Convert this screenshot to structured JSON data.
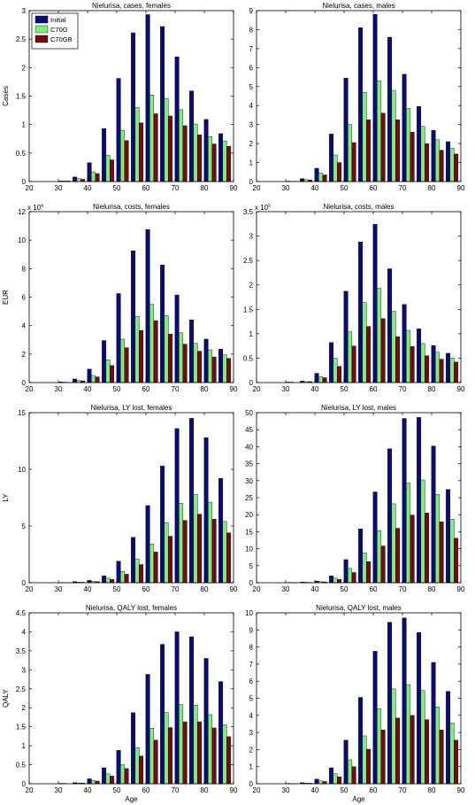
{
  "colors": {
    "Initial": "#0a0a7a",
    "C70G": "#7cf07c",
    "C70GB": "#7a0a0a",
    "axis": "#000000"
  },
  "legend": {
    "labels": [
      "Initial",
      "C70G",
      "C70GB"
    ],
    "placement": "top-left",
    "panel_index": 0
  },
  "chart_data": [
    {
      "type": "bar",
      "title": "Nielurisa, cases, females",
      "xlabel": "",
      "ylabel": "Cases",
      "exponent": "",
      "xlim": [
        20,
        90
      ],
      "ylim": [
        0,
        3
      ],
      "xticks": [
        20,
        30,
        40,
        50,
        60,
        70,
        80,
        90
      ],
      "yticks": [
        0,
        0.5,
        1,
        1.5,
        2,
        2.5,
        3
      ],
      "categories": [
        22,
        27,
        32,
        37,
        42,
        47,
        52,
        57,
        62,
        67,
        72,
        77,
        82,
        87
      ],
      "series": [
        {
          "name": "Initial",
          "values": [
            0,
            0,
            0.01,
            0.08,
            0.33,
            0.93,
            1.81,
            2.61,
            2.93,
            2.72,
            2.19,
            1.59,
            1.09,
            0.84
          ]
        },
        {
          "name": "C70G",
          "values": [
            0,
            0,
            0.01,
            0.05,
            0.17,
            0.46,
            0.9,
            1.3,
            1.52,
            1.46,
            1.26,
            1.01,
            0.79,
            0.71
          ]
        },
        {
          "name": "C70GB",
          "values": [
            0,
            0,
            0.01,
            0.04,
            0.14,
            0.38,
            0.72,
            1.03,
            1.19,
            1.15,
            0.98,
            0.82,
            0.66,
            0.62
          ]
        }
      ]
    },
    {
      "type": "bar",
      "title": "Nielurisa, cases, males",
      "xlabel": "",
      "ylabel": "",
      "exponent": "",
      "xlim": [
        20,
        90
      ],
      "ylim": [
        0,
        9
      ],
      "xticks": [
        20,
        30,
        40,
        50,
        60,
        70,
        80,
        90
      ],
      "yticks": [
        0,
        1,
        2,
        3,
        4,
        5,
        6,
        7,
        8,
        9
      ],
      "categories": [
        22,
        27,
        32,
        37,
        42,
        47,
        52,
        57,
        62,
        67,
        72,
        77,
        82,
        87
      ],
      "series": [
        {
          "name": "Initial",
          "values": [
            0,
            0,
            0.02,
            0.15,
            0.7,
            2.5,
            5.45,
            8.1,
            8.8,
            7.6,
            5.65,
            3.95,
            2.7,
            2.1
          ]
        },
        {
          "name": "C70G",
          "values": [
            0,
            0,
            0.01,
            0.1,
            0.45,
            1.4,
            3.0,
            4.7,
            5.3,
            4.8,
            3.85,
            2.9,
            2.2,
            1.75
          ]
        },
        {
          "name": "C70GB",
          "values": [
            0,
            0,
            0.01,
            0.08,
            0.35,
            1.0,
            2.05,
            3.25,
            3.6,
            3.25,
            2.6,
            2.0,
            1.65,
            1.45
          ]
        }
      ]
    },
    {
      "type": "bar",
      "title": "Nielurisa, costs, females",
      "xlabel": "",
      "ylabel": "EUR",
      "exponent": "x 10",
      "exponent_power": "4",
      "xlim": [
        20,
        90
      ],
      "ylim": [
        0,
        12
      ],
      "xticks": [
        20,
        30,
        40,
        50,
        60,
        70,
        80,
        90
      ],
      "yticks": [
        0,
        2,
        4,
        6,
        8,
        10,
        12
      ],
      "categories": [
        22,
        27,
        32,
        37,
        42,
        47,
        52,
        57,
        62,
        67,
        72,
        77,
        82,
        87
      ],
      "series": [
        {
          "name": "Initial",
          "values": [
            0,
            0,
            0.05,
            0.25,
            0.95,
            2.95,
            6.25,
            9.25,
            10.75,
            8.25,
            6.15,
            4.4,
            3.05,
            2.35
          ]
        },
        {
          "name": "C70G",
          "values": [
            0,
            0,
            0.03,
            0.15,
            0.5,
            1.6,
            3.05,
            4.65,
            5.5,
            4.7,
            3.5,
            2.75,
            2.3,
            1.95
          ]
        },
        {
          "name": "C70GB",
          "values": [
            0,
            0,
            0.02,
            0.12,
            0.4,
            1.2,
            2.45,
            3.65,
            4.35,
            3.4,
            2.7,
            2.2,
            1.8,
            1.7
          ]
        }
      ]
    },
    {
      "type": "bar",
      "title": "Nielurisa, costs, males",
      "xlabel": "",
      "ylabel": "",
      "exponent": "x 10",
      "exponent_power": "5",
      "xlim": [
        20,
        90
      ],
      "ylim": [
        0,
        3.5
      ],
      "xticks": [
        20,
        30,
        40,
        50,
        60,
        70,
        80,
        90
      ],
      "yticks": [
        0,
        0.5,
        1,
        1.5,
        2,
        2.5,
        3,
        3.5
      ],
      "categories": [
        22,
        27,
        32,
        37,
        42,
        47,
        52,
        57,
        62,
        67,
        72,
        77,
        82,
        87
      ],
      "series": [
        {
          "name": "Initial",
          "values": [
            0,
            0,
            0.01,
            0.03,
            0.19,
            0.82,
            1.87,
            2.88,
            3.24,
            2.33,
            1.6,
            1.1,
            0.76,
            0.6
          ]
        },
        {
          "name": "C70G",
          "values": [
            0,
            0,
            0.01,
            0.02,
            0.12,
            0.5,
            1.04,
            1.64,
            1.93,
            1.46,
            1.07,
            0.8,
            0.62,
            0.5
          ]
        },
        {
          "name": "C70GB",
          "values": [
            0,
            0,
            0.0,
            0.02,
            0.1,
            0.33,
            0.75,
            1.15,
            1.31,
            0.94,
            0.74,
            0.55,
            0.48,
            0.42
          ]
        }
      ]
    },
    {
      "type": "bar",
      "title": "Nielurisa, LY lost, females",
      "xlabel": "",
      "ylabel": "LY",
      "exponent": "",
      "xlim": [
        20,
        90
      ],
      "ylim": [
        0,
        15
      ],
      "xticks": [
        20,
        30,
        40,
        50,
        60,
        70,
        80,
        90
      ],
      "yticks": [
        0,
        5,
        10,
        15
      ],
      "categories": [
        22,
        27,
        32,
        37,
        42,
        47,
        52,
        57,
        62,
        67,
        72,
        77,
        82,
        87
      ],
      "series": [
        {
          "name": "Initial",
          "values": [
            0,
            0,
            0.02,
            0.1,
            0.2,
            0.6,
            1.9,
            4.0,
            6.8,
            10.3,
            13.6,
            14.5,
            12.8,
            9.2
          ]
        },
        {
          "name": "C70G",
          "values": [
            0,
            0,
            0.01,
            0.05,
            0.12,
            0.4,
            1.0,
            2.1,
            3.4,
            5.3,
            7.0,
            7.8,
            7.1,
            5.4
          ]
        },
        {
          "name": "C70GB",
          "values": [
            0,
            0,
            0.01,
            0.04,
            0.1,
            0.3,
            0.75,
            1.6,
            2.7,
            4.1,
            5.5,
            6.05,
            5.6,
            4.4
          ]
        }
      ]
    },
    {
      "type": "bar",
      "title": "Nielurisa, LY lost, males",
      "xlabel": "",
      "ylabel": "",
      "exponent": "",
      "xlim": [
        20,
        90
      ],
      "ylim": [
        0,
        50
      ],
      "xticks": [
        20,
        30,
        40,
        50,
        60,
        70,
        80,
        90
      ],
      "yticks": [
        0,
        5,
        10,
        15,
        20,
        25,
        30,
        35,
        40,
        45,
        50
      ],
      "categories": [
        22,
        27,
        32,
        37,
        42,
        47,
        52,
        57,
        62,
        67,
        72,
        77,
        82,
        87
      ],
      "series": [
        {
          "name": "Initial",
          "values": [
            0,
            0,
            0.05,
            0.2,
            0.5,
            2.0,
            6.8,
            15.8,
            26.7,
            39.4,
            48.3,
            48.6,
            40.2,
            27.4
          ]
        },
        {
          "name": "C70G",
          "values": [
            0,
            0,
            0.03,
            0.15,
            0.3,
            1.4,
            4.2,
            8.8,
            15.3,
            23.2,
            29.3,
            30.2,
            26.0,
            18.7
          ]
        },
        {
          "name": "C70GB",
          "values": [
            0,
            0,
            0.02,
            0.1,
            0.25,
            1.0,
            3.0,
            6.2,
            10.8,
            16.0,
            19.9,
            20.5,
            17.9,
            13.1
          ]
        }
      ]
    },
    {
      "type": "bar",
      "title": "Nielurisa, QALY lost, females",
      "xlabel": "Age",
      "ylabel": "QALY",
      "exponent": "",
      "xlim": [
        20,
        90
      ],
      "ylim": [
        0,
        4.5
      ],
      "xticks": [
        20,
        30,
        40,
        50,
        60,
        70,
        80,
        90
      ],
      "yticks": [
        0,
        0.5,
        1,
        1.5,
        2,
        2.5,
        3,
        3.5,
        4,
        4.5
      ],
      "categories": [
        22,
        27,
        32,
        37,
        42,
        47,
        52,
        57,
        62,
        67,
        72,
        77,
        82,
        87
      ],
      "series": [
        {
          "name": "Initial",
          "values": [
            0,
            0,
            0.01,
            0.03,
            0.13,
            0.42,
            0.88,
            1.87,
            2.88,
            3.67,
            4.0,
            3.87,
            3.3,
            2.69
          ]
        },
        {
          "name": "C70G",
          "values": [
            0,
            0,
            0.01,
            0.02,
            0.09,
            0.26,
            0.5,
            0.95,
            1.46,
            1.87,
            2.08,
            2.07,
            1.82,
            1.55
          ]
        },
        {
          "name": "C70GB",
          "values": [
            0,
            0,
            0.0,
            0.02,
            0.07,
            0.2,
            0.4,
            0.73,
            1.15,
            1.48,
            1.63,
            1.63,
            1.47,
            1.24
          ]
        }
      ]
    },
    {
      "type": "bar",
      "title": "Nielurisa, QALY lost, males",
      "xlabel": "Age",
      "ylabel": "",
      "exponent": "",
      "xlim": [
        20,
        90
      ],
      "ylim": [
        0,
        10
      ],
      "xticks": [
        20,
        30,
        40,
        50,
        60,
        70,
        80,
        90
      ],
      "yticks": [
        0,
        1,
        2,
        3,
        4,
        5,
        6,
        7,
        8,
        9,
        10
      ],
      "categories": [
        22,
        27,
        32,
        37,
        42,
        47,
        52,
        57,
        62,
        67,
        72,
        77,
        82,
        87
      ],
      "series": [
        {
          "name": "Initial",
          "values": [
            0,
            0,
            0.02,
            0.06,
            0.27,
            0.93,
            2.55,
            5.05,
            7.75,
            9.45,
            9.7,
            8.85,
            7.1,
            5.4
          ]
        },
        {
          "name": "C70G",
          "values": [
            0,
            0,
            0.01,
            0.04,
            0.17,
            0.58,
            1.4,
            2.8,
            4.4,
            5.55,
            5.8,
            5.45,
            4.5,
            3.55
          ]
        },
        {
          "name": "C70GB",
          "values": [
            0,
            0,
            0.01,
            0.03,
            0.13,
            0.4,
            1.0,
            2.02,
            3.15,
            3.85,
            4.0,
            3.75,
            3.15,
            2.55
          ]
        }
      ]
    }
  ]
}
